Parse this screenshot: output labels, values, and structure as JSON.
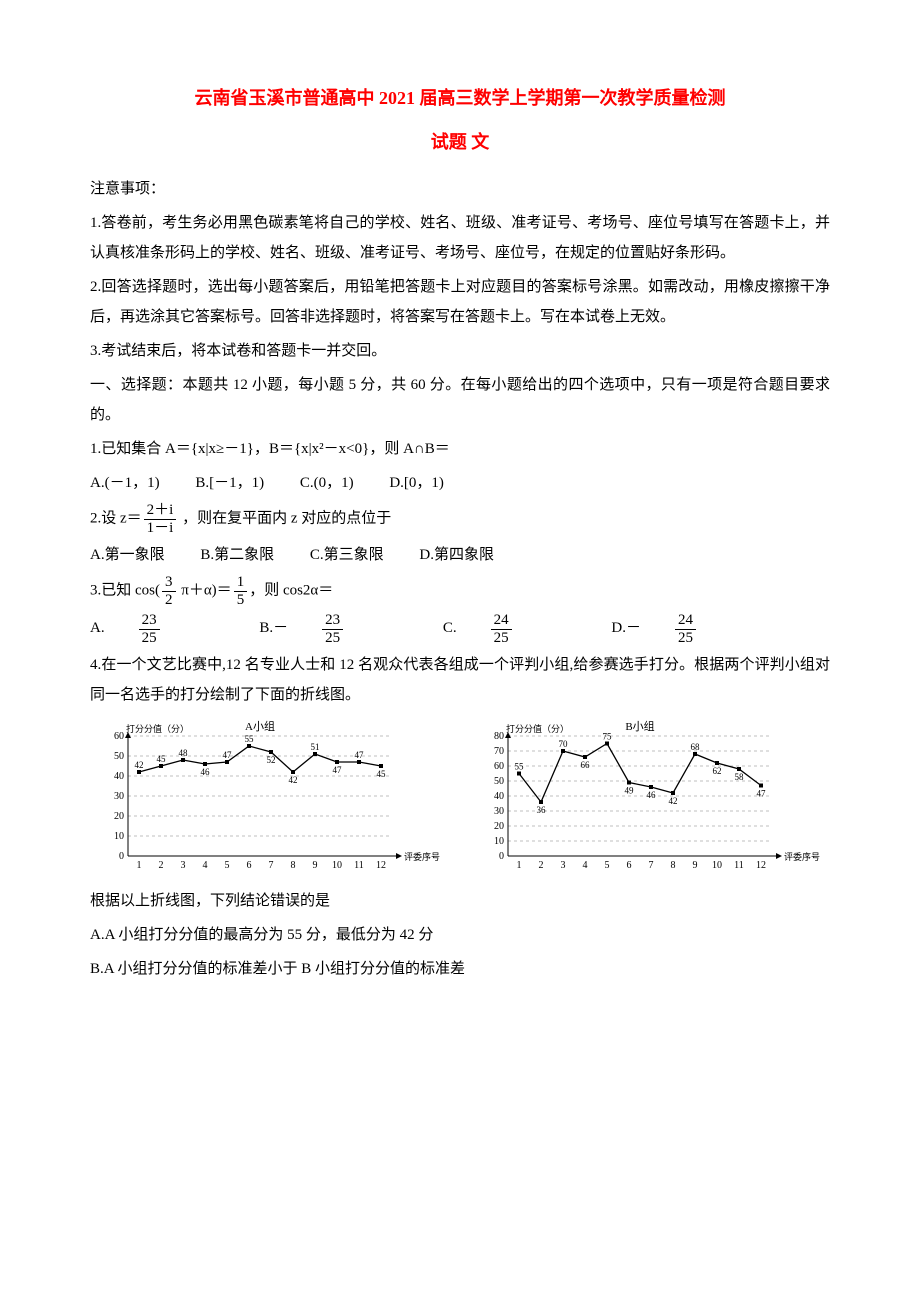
{
  "title": "云南省玉溪市普通高中 2021 届高三数学上学期第一次教学质量检测",
  "subtitle": "试题 文",
  "notice_header": "注意事项：",
  "notice_1": "1.答卷前，考生务必用黑色碳素笔将自己的学校、姓名、班级、准考证号、考场号、座位号填写在答题卡上，并认真核准条形码上的学校、姓名、班级、准考证号、考场号、座位号，在规定的位置贴好条形码。",
  "notice_2": "2.回答选择题时，选出每小题答案后，用铅笔把答题卡上对应题目的答案标号涂黑。如需改动，用橡皮擦擦干净后，再选涂其它答案标号。回答非选择题时，将答案写在答题卡上。写在本试卷上无效。",
  "notice_3": "3.考试结束后，将本试卷和答题卡一并交回。",
  "section_1": "一、选择题：本题共 12 小题，每小题 5 分，共 60 分。在每小题给出的四个选项中，只有一项是符合题目要求的。",
  "q1": {
    "stem": "1.已知集合 A＝{x|x≥－1}，B＝{x|x²－x<0}，则 A∩B＝",
    "A": "A.(－1，1)",
    "B": "B.[－1，1)",
    "C": "C.(0，1)",
    "D": "D.[0，1)"
  },
  "q2": {
    "prefix": "2.设 z＝",
    "frac_num": "2＋i",
    "frac_den": "1－i",
    "suffix": " ，则在复平面内 z 对应的点位于",
    "A": "A.第一象限",
    "B": "B.第二象限",
    "C": "C.第三象限",
    "D": "D.第四象限"
  },
  "q3": {
    "prefix": "3.已知 cos(",
    "f1_num": "3",
    "f1_den": "2",
    "mid": " π＋α)＝",
    "f2_num": "1",
    "f2_den": "5",
    "suffix": "，则 cos2α＝",
    "A_pre": "A.",
    "A_num": "23",
    "A_den": "25",
    "B_pre": "B.－",
    "B_num": "23",
    "B_den": "25",
    "C_pre": "C.",
    "C_num": "24",
    "C_den": "25",
    "D_pre": "D.－",
    "D_num": "24",
    "D_den": "25"
  },
  "q4": {
    "stem": "4.在一个文艺比赛中,12 名专业人士和 12 名观众代表各组成一个评判小组,给参赛选手打分。根据两个评判小组对同一名选手的打分绘制了下面的折线图。",
    "after": "根据以上折线图，下列结论错误的是",
    "A": "A.A 小组打分分值的最高分为 55 分，最低分为 42 分",
    "B": "B.A 小组打分分值的标准差小于 B 小组打分分值的标准差"
  },
  "chartA": {
    "title": "A小组",
    "ylabel": "打分分值（分）",
    "xlabel": "评委序号",
    "ymax": 60,
    "ystep": 10,
    "xvals": [
      1,
      2,
      3,
      4,
      5,
      6,
      7,
      8,
      9,
      10,
      11,
      12
    ],
    "values": [
      42,
      45,
      48,
      46,
      47,
      55,
      52,
      42,
      51,
      47,
      47,
      45
    ],
    "line_color": "#000000",
    "grid_color": "#808080",
    "bg": "#ffffff",
    "font_size": 10
  },
  "chartB": {
    "title": "B小组",
    "ylabel": "打分分值（分）",
    "xlabel": "评委序号",
    "ymax": 80,
    "ystep": 10,
    "xvals": [
      1,
      2,
      3,
      4,
      5,
      6,
      7,
      8,
      9,
      10,
      11,
      12
    ],
    "values": [
      55,
      36,
      70,
      66,
      75,
      49,
      46,
      42,
      68,
      62,
      58,
      47
    ],
    "line_color": "#000000",
    "grid_color": "#808080",
    "bg": "#ffffff",
    "font_size": 10
  }
}
